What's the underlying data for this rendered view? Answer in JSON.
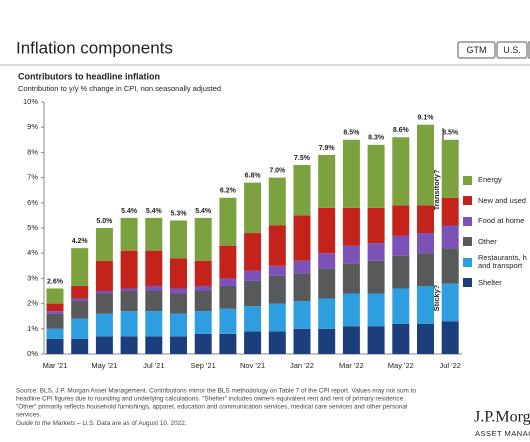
{
  "header": {
    "title": "Inflation components",
    "buttons": [
      "GTM",
      "U.S."
    ]
  },
  "chart_data": {
    "type": "stacked_bar",
    "title": "Contributors to headline inflation",
    "subtitle": "Contribution to y/y % change in CPI, non seasonally adjusted",
    "categories": [
      "Mar '21",
      null,
      "May '21",
      null,
      "Jul '21",
      null,
      "Sep '21",
      null,
      "Nov '21",
      null,
      "Jan '22",
      null,
      "Mar '22",
      null,
      "May '22",
      null,
      "Jul '22"
    ],
    "series": [
      {
        "name": "Shelter",
        "color": "#1c3f7c",
        "values": [
          0.6,
          0.6,
          0.7,
          0.7,
          0.7,
          0.7,
          0.8,
          0.8,
          0.9,
          0.9,
          1.0,
          1.0,
          1.1,
          1.1,
          1.2,
          1.2,
          1.3
        ]
      },
      {
        "name": "Restaurants, h and transport",
        "color": "#2e9ee0",
        "values": [
          0.4,
          0.8,
          0.9,
          1.0,
          1.0,
          0.9,
          0.9,
          1.0,
          1.0,
          1.1,
          1.1,
          1.2,
          1.3,
          1.3,
          1.4,
          1.5,
          1.5
        ]
      },
      {
        "name": "Other",
        "color": "#58595b",
        "values": [
          0.6,
          0.7,
          0.8,
          0.8,
          0.8,
          0.8,
          0.8,
          0.9,
          1.0,
          1.1,
          1.1,
          1.2,
          1.2,
          1.3,
          1.3,
          1.3,
          1.4
        ]
      },
      {
        "name": "Food at home",
        "color": "#7c52b8",
        "values": [
          0.1,
          0.1,
          0.1,
          0.1,
          0.2,
          0.2,
          0.2,
          0.3,
          0.4,
          0.4,
          0.5,
          0.6,
          0.7,
          0.7,
          0.8,
          0.8,
          0.9
        ]
      },
      {
        "name": "New and used",
        "color": "#c4231c",
        "values": [
          0.3,
          0.5,
          1.2,
          1.5,
          1.4,
          1.2,
          1.0,
          1.3,
          1.5,
          1.6,
          1.8,
          1.8,
          1.5,
          1.4,
          1.2,
          1.1,
          1.1
        ]
      },
      {
        "name": "Energy",
        "color": "#7ba23f",
        "values": [
          0.6,
          1.5,
          1.3,
          1.3,
          1.3,
          1.5,
          1.7,
          1.9,
          2.0,
          1.9,
          2.0,
          2.1,
          2.7,
          2.5,
          2.7,
          3.2,
          2.3
        ]
      }
    ],
    "totals": [
      2.6,
      4.2,
      5.0,
      5.4,
      5.4,
      5.3,
      5.4,
      6.2,
      6.8,
      7.0,
      7.5,
      7.9,
      8.5,
      8.3,
      8.6,
      9.1,
      8.5
    ],
    "total_labels": [
      "2.6%",
      "4.2%",
      "5.0%",
      "5.4%",
      "5.4%",
      "5.3%",
      "5.4%",
      "6.2%",
      "6.8%",
      "7.0%",
      "7.5%",
      "7.9%",
      "8.5%",
      "8.3%",
      "8.6%",
      "9.1%",
      "8.5%"
    ],
    "ylim": [
      0,
      10
    ],
    "yticks": [
      {
        "value": 0,
        "label": "0%"
      },
      {
        "value": 1,
        "label": "1%"
      },
      {
        "value": 2,
        "label": "2%"
      },
      {
        "value": 3,
        "label": "3%"
      },
      {
        "value": 4,
        "label": "4%"
      },
      {
        "value": 5,
        "label": "5%"
      },
      {
        "value": 6,
        "label": "6%"
      },
      {
        "value": 7,
        "label": "7%"
      },
      {
        "value": 8,
        "label": "8%"
      },
      {
        "value": 9,
        "label": "9%"
      },
      {
        "value": 10,
        "label": "10%"
      }
    ],
    "grid": false,
    "legend": "right",
    "annotations": [
      "Transitory?",
      "Sticky?"
    ]
  },
  "footer": {
    "lines": [
      "Source: BLS, J.P. Morgan Asset Management. Contributions mirror the BLS methodology on Table 7 of the CPI report. Values may not sum to",
      "headline CPI figures due to rounding and underlying calculations. \"Shelter\" includes owners equivalent rent and rent of primary residence.",
      "\"Other\" primarily reflects household furnishings, apparel, education and communication services, medical care services and other personal",
      "services."
    ],
    "guide": "Guide to the Markets – U.S.",
    "date": "Data are as of August 10, 2022."
  },
  "logo": {
    "name": "J.P.Morg",
    "tagline": "ASSET MANAGEM"
  }
}
